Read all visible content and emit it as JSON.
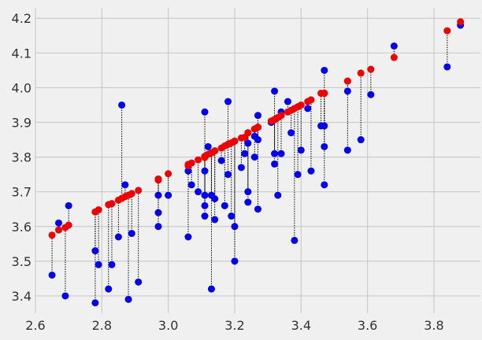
{
  "chart_data": {
    "type": "scatter",
    "title": "",
    "xlabel": "",
    "ylabel": "",
    "grid": true,
    "xlim": [
      2.6,
      3.94
    ],
    "ylim": [
      3.35,
      4.23
    ],
    "xticks": [
      "2.6",
      "2.8",
      "3.0",
      "3.2",
      "3.4",
      "3.6",
      "3.8"
    ],
    "yticks": [
      "3.4",
      "3.5",
      "3.6",
      "3.7",
      "3.8",
      "3.9",
      "4.0",
      "4.1",
      "4.2"
    ],
    "colors": {
      "background": "#f0f0f0",
      "grid": "#cbcbcb",
      "actual": "#0000ee",
      "predicted": "#ee0000",
      "residual_line": "#000000"
    },
    "series": [
      {
        "role": "actual",
        "x": [
          2.65,
          2.67,
          2.69,
          2.7,
          2.78,
          2.78,
          2.79,
          2.82,
          2.83,
          2.85,
          2.86,
          2.87,
          2.88,
          2.89,
          2.91,
          2.97,
          2.97,
          2.97,
          3.0,
          3.06,
          3.06,
          3.07,
          3.09,
          3.11,
          3.11,
          3.11,
          3.11,
          3.11,
          3.12,
          3.13,
          3.13,
          3.14,
          3.14,
          3.16,
          3.17,
          3.18,
          3.18,
          3.19,
          3.2,
          3.2,
          3.22,
          3.23,
          3.24,
          3.24,
          3.24,
          3.26,
          3.26,
          3.27,
          3.27,
          3.27,
          3.31,
          3.32,
          3.32,
          3.32,
          3.33,
          3.34,
          3.34,
          3.36,
          3.37,
          3.38,
          3.39,
          3.4,
          3.42,
          3.43,
          3.46,
          3.47,
          3.47,
          3.47,
          3.47,
          3.54,
          3.54,
          3.58,
          3.61,
          3.68,
          3.84,
          3.88
        ],
        "y": [
          3.46,
          3.61,
          3.4,
          3.66,
          3.53,
          3.38,
          3.49,
          3.42,
          3.49,
          3.57,
          3.95,
          3.72,
          3.39,
          3.58,
          3.44,
          3.69,
          3.64,
          3.6,
          3.69,
          3.76,
          3.57,
          3.72,
          3.7,
          3.93,
          3.76,
          3.69,
          3.66,
          3.63,
          3.83,
          3.42,
          3.69,
          3.68,
          3.62,
          3.79,
          3.66,
          3.96,
          3.75,
          3.63,
          3.6,
          3.5,
          3.77,
          3.81,
          3.67,
          3.7,
          3.84,
          3.86,
          3.8,
          3.92,
          3.85,
          3.65,
          3.9,
          3.81,
          3.99,
          3.78,
          3.69,
          3.81,
          3.93,
          3.96,
          3.87,
          3.56,
          3.75,
          3.82,
          3.94,
          3.76,
          3.89,
          4.05,
          3.89,
          3.83,
          3.72,
          3.99,
          3.82,
          3.85,
          3.98,
          4.12,
          4.06,
          4.18
        ]
      },
      {
        "role": "predicted",
        "x": [
          2.65,
          2.67,
          2.69,
          2.7,
          2.78,
          2.78,
          2.79,
          2.82,
          2.83,
          2.85,
          2.86,
          2.87,
          2.88,
          2.89,
          2.91,
          2.97,
          2.97,
          2.97,
          3.0,
          3.06,
          3.06,
          3.07,
          3.09,
          3.11,
          3.11,
          3.11,
          3.11,
          3.11,
          3.12,
          3.13,
          3.13,
          3.14,
          3.14,
          3.16,
          3.17,
          3.18,
          3.18,
          3.19,
          3.2,
          3.2,
          3.22,
          3.23,
          3.24,
          3.24,
          3.24,
          3.26,
          3.26,
          3.27,
          3.27,
          3.27,
          3.31,
          3.32,
          3.32,
          3.32,
          3.33,
          3.34,
          3.34,
          3.36,
          3.37,
          3.38,
          3.39,
          3.4,
          3.42,
          3.43,
          3.46,
          3.47,
          3.47,
          3.47,
          3.47,
          3.54,
          3.54,
          3.58,
          3.61,
          3.68,
          3.84,
          3.88
        ],
        "y": [
          3.575,
          3.59,
          3.597,
          3.604,
          3.642,
          3.642,
          3.648,
          3.663,
          3.666,
          3.676,
          3.681,
          3.686,
          3.69,
          3.695,
          3.704,
          3.734,
          3.734,
          3.737,
          3.752,
          3.775,
          3.779,
          3.783,
          3.792,
          3.799,
          3.802,
          3.802,
          3.802,
          3.802,
          3.808,
          3.812,
          3.812,
          3.818,
          3.818,
          3.826,
          3.832,
          3.837,
          3.837,
          3.841,
          3.846,
          3.846,
          3.855,
          3.857,
          3.87,
          3.87,
          3.87,
          3.881,
          3.881,
          3.886,
          3.886,
          3.886,
          3.904,
          3.908,
          3.908,
          3.908,
          3.914,
          3.92,
          3.92,
          3.93,
          3.935,
          3.94,
          3.945,
          3.95,
          3.96,
          3.965,
          3.984,
          3.984,
          3.984,
          3.984,
          3.984,
          4.019,
          4.019,
          4.042,
          4.053,
          4.087,
          4.164,
          4.19
        ]
      }
    ]
  }
}
